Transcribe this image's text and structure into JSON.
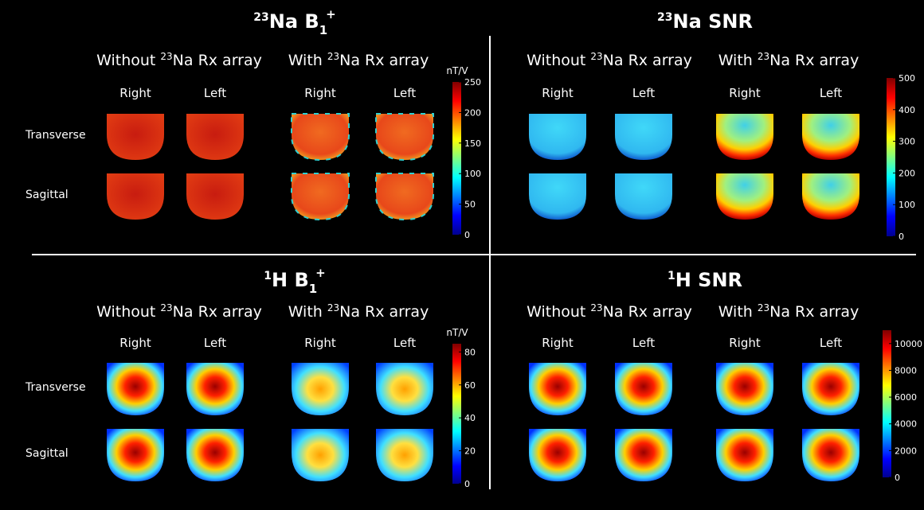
{
  "panels": [
    {
      "title": {
        "sup_left": "23",
        "main": "Na B",
        "sub": "1",
        "sup": "+"
      },
      "groups": [
        {
          "pre": "Without",
          "sup": "23",
          "post": "Na Rx array"
        },
        {
          "pre": "With",
          "sup": "23",
          "post": "Na Rx array"
        }
      ],
      "columns": [
        "Right",
        "Left",
        "Right",
        "Left"
      ],
      "rows": [
        "Transverse",
        "Sagittal"
      ],
      "colorbar": {
        "unit": "nT/V",
        "lim": [
          0,
          250
        ],
        "ticks": [
          0,
          50,
          100,
          150,
          200,
          250
        ]
      }
    },
    {
      "title": {
        "sup_left": "23",
        "main": "Na SNR"
      },
      "groups": [
        {
          "pre": "Without",
          "sup": "23",
          "post": "Na Rx array"
        },
        {
          "pre": "With",
          "sup": "23",
          "post": "Na Rx array"
        }
      ],
      "columns": [
        "Right",
        "Left",
        "Right",
        "Left"
      ],
      "colorbar": {
        "lim": [
          0,
          500
        ],
        "ticks": [
          0,
          100,
          200,
          300,
          400,
          500
        ]
      }
    },
    {
      "title": {
        "sup_left": "1",
        "main": "H B",
        "sub": "1",
        "sup": "+"
      },
      "groups": [
        {
          "pre": "Without",
          "sup": "23",
          "post": "Na Rx array"
        },
        {
          "pre": "With",
          "sup": "23",
          "post": "Na Rx array"
        }
      ],
      "columns": [
        "Right",
        "Left",
        "Right",
        "Left"
      ],
      "rows": [
        "Transverse",
        "Sagittal"
      ],
      "colorbar": {
        "unit": "nT/V",
        "lim": [
          0,
          85
        ],
        "ticks": [
          0,
          20,
          40,
          60,
          80
        ]
      }
    },
    {
      "title": {
        "sup_left": "1",
        "main": "H SNR"
      },
      "groups": [
        {
          "pre": "Without",
          "sup": "23",
          "post": "Na Rx array"
        },
        {
          "pre": "With",
          "sup": "23",
          "post": "Na Rx array"
        }
      ],
      "columns": [
        "Right",
        "Left",
        "Right",
        "Left"
      ],
      "colorbar": {
        "lim": [
          0,
          11000
        ],
        "ticks": [
          0,
          2000,
          4000,
          6000,
          8000,
          10000
        ]
      }
    }
  ]
}
